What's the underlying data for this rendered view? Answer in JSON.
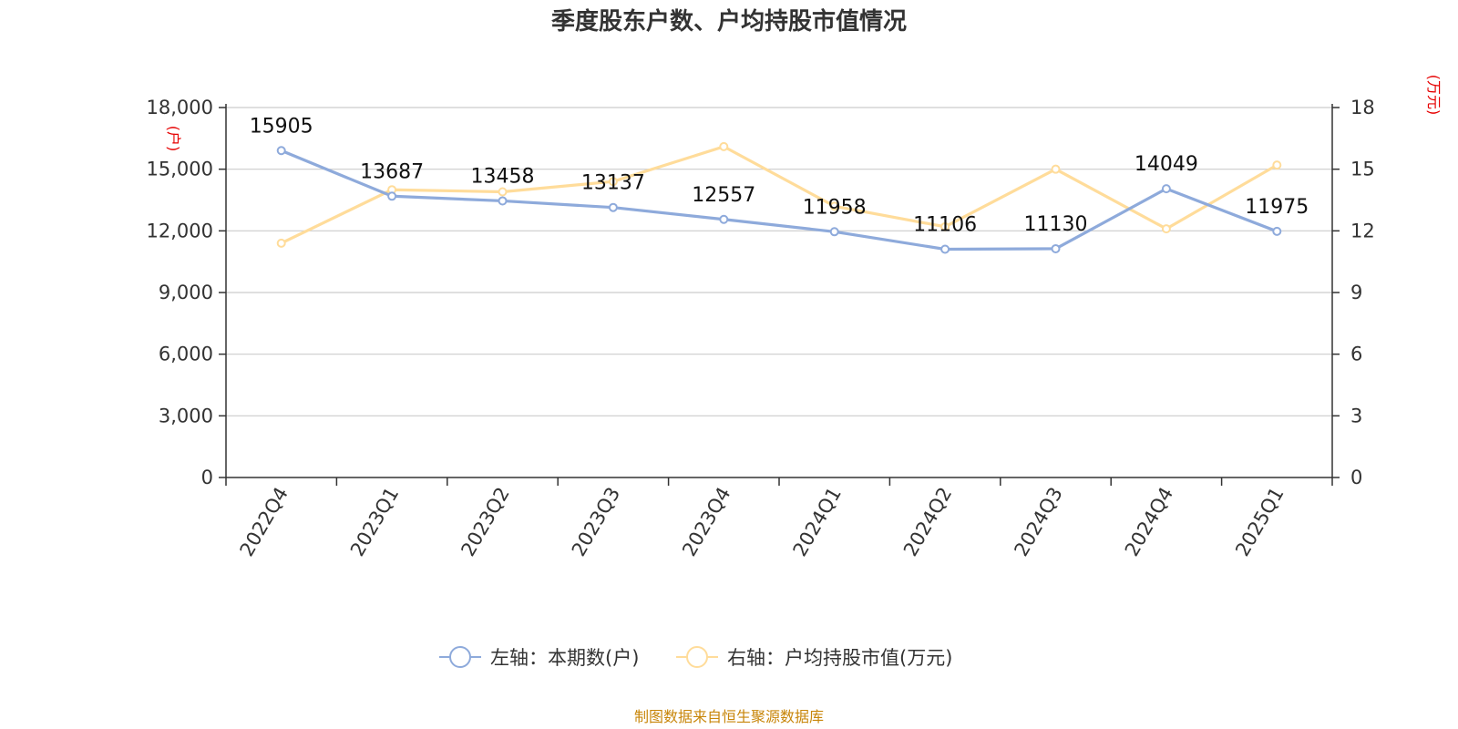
{
  "chart_data": {
    "type": "line",
    "title": "季度股东户数、户均持股市值情况",
    "categories": [
      "2022Q4",
      "2023Q1",
      "2023Q2",
      "2023Q3",
      "2023Q4",
      "2024Q1",
      "2024Q2",
      "2024Q3",
      "2024Q4",
      "2025Q1"
    ],
    "left_axis": {
      "unit": "(户)",
      "ylim": [
        0,
        18000
      ],
      "ticks": [
        "0",
        "3,000",
        "6,000",
        "9,000",
        "12,000",
        "15,000",
        "18,000"
      ]
    },
    "right_axis": {
      "unit": "(万元)",
      "ylim": [
        0,
        18
      ],
      "ticks": [
        "0",
        "3",
        "6",
        "9",
        "12",
        "15",
        "18"
      ]
    },
    "series": [
      {
        "name": "左轴：本期数(户)",
        "axis": "left",
        "color": "#8eaadb",
        "values": [
          15905,
          13687,
          13458,
          13137,
          12557,
          11958,
          11106,
          11130,
          14049,
          11975
        ],
        "labels": [
          "15905",
          "13687",
          "13458",
          "13137",
          "12557",
          "11958",
          "11106",
          "11130",
          "14049",
          "11975"
        ]
      },
      {
        "name": "右轴：户均持股市值(万元)",
        "axis": "right",
        "color": "#ffdc9a",
        "values": [
          11.4,
          14.0,
          13.9,
          14.4,
          16.1,
          13.2,
          12.2,
          15.0,
          12.1,
          15.2
        ]
      }
    ],
    "grid": true,
    "legend": "bottom-center",
    "source": "制图数据来自恒生聚源数据库"
  }
}
